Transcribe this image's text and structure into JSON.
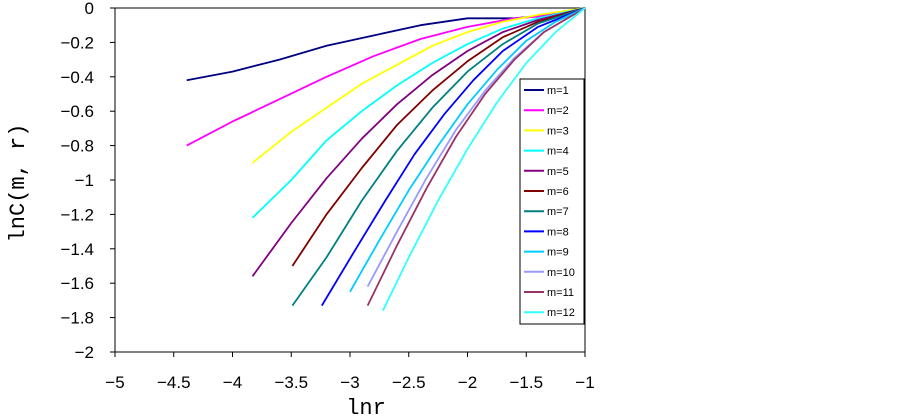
{
  "chart_data": {
    "type": "line",
    "xlabel": "lnr",
    "ylabel": "lnC(m, r)",
    "xlim": [
      -5,
      -1
    ],
    "ylim": [
      -2,
      0
    ],
    "xticks": [
      -5,
      -4.5,
      -4,
      -3.5,
      -3,
      -2.5,
      -2,
      -1.5,
      -1
    ],
    "yticks": [
      0,
      -0.2,
      -0.4,
      -0.6,
      -0.8,
      -1,
      -1.2,
      -1.4,
      -1.6,
      -1.8,
      -2
    ],
    "xtick_labels": [
      "−5",
      "−4.5",
      "−4",
      "−3.5",
      "−3",
      "−2.5",
      "−2",
      "−1.5",
      "−1"
    ],
    "ytick_labels": [
      "0",
      "−0.2",
      "−0.4",
      "−0.6",
      "−0.8",
      "−1",
      "−1.2",
      "−1.4",
      "−1.6",
      "−1.8",
      "−2"
    ],
    "grid": false,
    "legend_position": "right",
    "series": [
      {
        "name": "m=1",
        "color": "#000080",
        "points": [
          [
            -4.39,
            -0.42
          ],
          [
            -4.0,
            -0.37
          ],
          [
            -3.6,
            -0.3
          ],
          [
            -3.2,
            -0.22
          ],
          [
            -2.8,
            -0.16
          ],
          [
            -2.4,
            -0.1
          ],
          [
            -2.0,
            -0.06
          ],
          [
            -1.6,
            -0.06
          ],
          [
            -1.3,
            -0.04
          ],
          [
            -1.0,
            0.0
          ]
        ]
      },
      {
        "name": "m=2",
        "color": "#FF00FF",
        "points": [
          [
            -4.39,
            -0.8
          ],
          [
            -4.0,
            -0.66
          ],
          [
            -3.6,
            -0.53
          ],
          [
            -3.2,
            -0.4
          ],
          [
            -2.8,
            -0.28
          ],
          [
            -2.4,
            -0.18
          ],
          [
            -2.0,
            -0.11
          ],
          [
            -1.6,
            -0.06
          ],
          [
            -1.4,
            -0.05
          ],
          [
            -1.0,
            0.0
          ]
        ]
      },
      {
        "name": "m=3",
        "color": "#FFFF00",
        "points": [
          [
            -3.83,
            -0.9
          ],
          [
            -3.5,
            -0.72
          ],
          [
            -3.2,
            -0.58
          ],
          [
            -2.9,
            -0.44
          ],
          [
            -2.6,
            -0.33
          ],
          [
            -2.3,
            -0.22
          ],
          [
            -2.0,
            -0.14
          ],
          [
            -1.7,
            -0.08
          ],
          [
            -1.4,
            -0.04
          ],
          [
            -1.0,
            0.0
          ]
        ]
      },
      {
        "name": "m=4",
        "color": "#00FFFF",
        "points": [
          [
            -3.83,
            -1.22
          ],
          [
            -3.5,
            -1.0
          ],
          [
            -3.2,
            -0.77
          ],
          [
            -2.9,
            -0.6
          ],
          [
            -2.6,
            -0.45
          ],
          [
            -2.3,
            -0.32
          ],
          [
            -2.0,
            -0.21
          ],
          [
            -1.7,
            -0.12
          ],
          [
            -1.4,
            -0.06
          ],
          [
            -1.0,
            0.0
          ]
        ]
      },
      {
        "name": "m=5",
        "color": "#800080",
        "points": [
          [
            -3.83,
            -1.56
          ],
          [
            -3.5,
            -1.25
          ],
          [
            -3.2,
            -0.99
          ],
          [
            -2.9,
            -0.76
          ],
          [
            -2.6,
            -0.56
          ],
          [
            -2.3,
            -0.39
          ],
          [
            -2.0,
            -0.25
          ],
          [
            -1.7,
            -0.14
          ],
          [
            -1.4,
            -0.07
          ],
          [
            -1.0,
            0.0
          ]
        ]
      },
      {
        "name": "m=6",
        "color": "#800000",
        "points": [
          [
            -3.49,
            -1.5
          ],
          [
            -3.2,
            -1.2
          ],
          [
            -2.9,
            -0.93
          ],
          [
            -2.6,
            -0.68
          ],
          [
            -2.3,
            -0.48
          ],
          [
            -2.0,
            -0.31
          ],
          [
            -1.7,
            -0.17
          ],
          [
            -1.4,
            -0.08
          ],
          [
            -1.0,
            0.0
          ]
        ]
      },
      {
        "name": "m=7",
        "color": "#008080",
        "points": [
          [
            -3.49,
            -1.73
          ],
          [
            -3.2,
            -1.45
          ],
          [
            -2.9,
            -1.12
          ],
          [
            -2.6,
            -0.83
          ],
          [
            -2.3,
            -0.58
          ],
          [
            -2.0,
            -0.37
          ],
          [
            -1.7,
            -0.21
          ],
          [
            -1.4,
            -0.09
          ],
          [
            -1.0,
            0.0
          ]
        ]
      },
      {
        "name": "m=8",
        "color": "#0000FF",
        "points": [
          [
            -3.24,
            -1.73
          ],
          [
            -2.95,
            -1.4
          ],
          [
            -2.7,
            -1.12
          ],
          [
            -2.45,
            -0.85
          ],
          [
            -2.2,
            -0.62
          ],
          [
            -1.95,
            -0.42
          ],
          [
            -1.7,
            -0.25
          ],
          [
            -1.4,
            -0.11
          ],
          [
            -1.0,
            0.0
          ]
        ]
      },
      {
        "name": "m=9",
        "color": "#00CCFF",
        "points": [
          [
            -3.0,
            -1.65
          ],
          [
            -2.75,
            -1.35
          ],
          [
            -2.5,
            -1.06
          ],
          [
            -2.25,
            -0.8
          ],
          [
            -2.0,
            -0.56
          ],
          [
            -1.75,
            -0.36
          ],
          [
            -1.5,
            -0.19
          ],
          [
            -1.25,
            -0.08
          ],
          [
            -1.0,
            0.0
          ]
        ]
      },
      {
        "name": "m=10",
        "color": "#9999FF",
        "points": [
          [
            -2.85,
            -1.62
          ],
          [
            -2.6,
            -1.3
          ],
          [
            -2.35,
            -0.99
          ],
          [
            -2.1,
            -0.71
          ],
          [
            -1.85,
            -0.48
          ],
          [
            -1.6,
            -0.29
          ],
          [
            -1.35,
            -0.14
          ],
          [
            -1.0,
            0.0
          ]
        ]
      },
      {
        "name": "m=11",
        "color": "#993366",
        "points": [
          [
            -2.85,
            -1.73
          ],
          [
            -2.6,
            -1.38
          ],
          [
            -2.35,
            -1.05
          ],
          [
            -2.1,
            -0.75
          ],
          [
            -1.85,
            -0.5
          ],
          [
            -1.6,
            -0.3
          ],
          [
            -1.35,
            -0.14
          ],
          [
            -1.0,
            0.0
          ]
        ]
      },
      {
        "name": "m=12",
        "color": "#33FFFF",
        "points": [
          [
            -2.72,
            -1.76
          ],
          [
            -2.5,
            -1.45
          ],
          [
            -2.25,
            -1.12
          ],
          [
            -2.0,
            -0.82
          ],
          [
            -1.75,
            -0.55
          ],
          [
            -1.5,
            -0.32
          ],
          [
            -1.25,
            -0.14
          ],
          [
            -1.0,
            0.0
          ]
        ]
      }
    ]
  }
}
